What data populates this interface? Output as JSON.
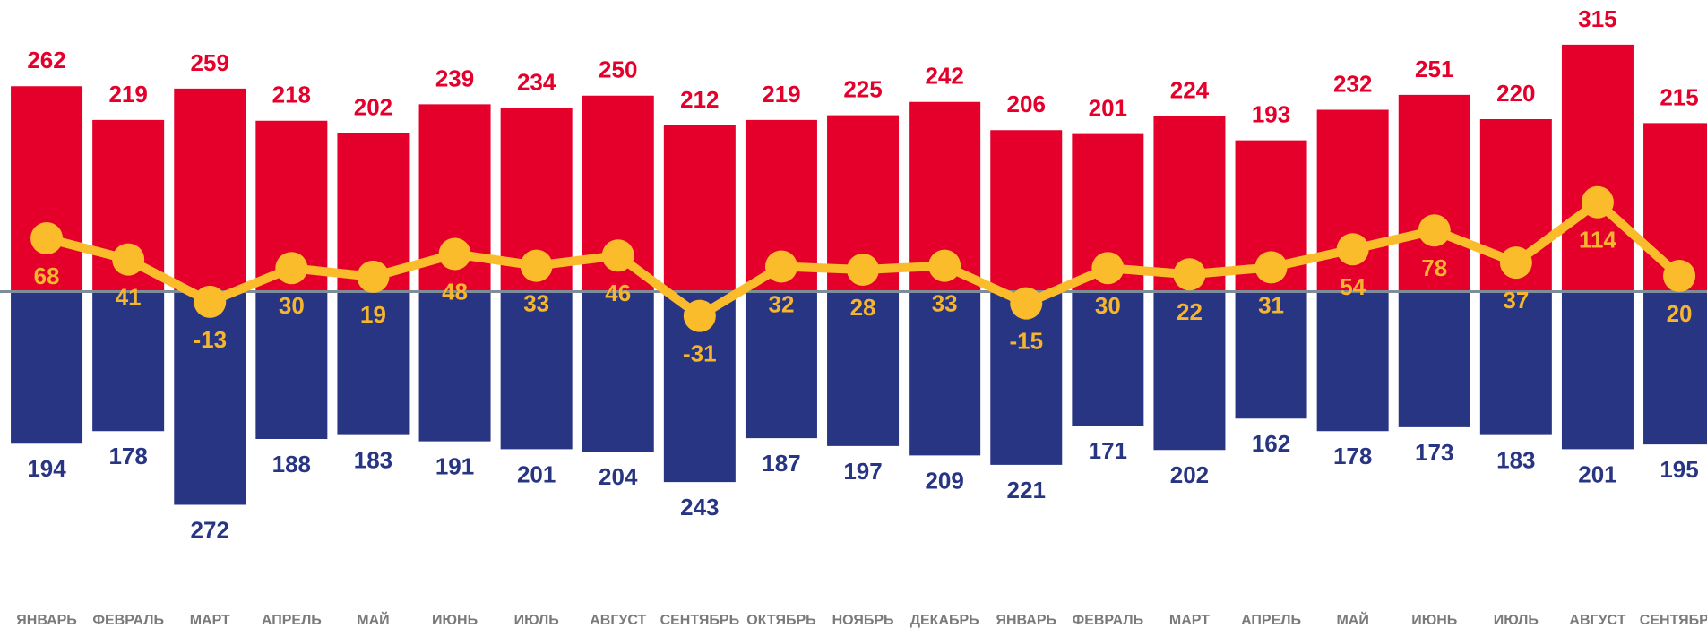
{
  "chart_data": {
    "type": "bar",
    "categories": [
      "ЯНВАРЬ",
      "ФЕВРАЛЬ",
      "МАРТ",
      "АПРЕЛЬ",
      "МАЙ",
      "ИЮНЬ",
      "ИЮЛЬ",
      "АВГУСТ",
      "СЕНТЯБРЬ",
      "ОКТЯБРЬ",
      "НОЯБРЬ",
      "ДЕКАБРЬ",
      "ЯНВАРЬ",
      "ФЕВРАЛЬ",
      "МАРТ",
      "АПРЕЛЬ",
      "МАЙ",
      "ИЮНЬ",
      "ИЮЛЬ",
      "АВГУСТ",
      "СЕНТЯБРЬ"
    ],
    "series": [
      {
        "color": "#e4002b",
        "values": [
          262,
          219,
          259,
          218,
          202,
          239,
          234,
          250,
          212,
          219,
          225,
          242,
          206,
          201,
          224,
          193,
          232,
          251,
          220,
          315,
          215
        ]
      },
      {
        "color": "#283583",
        "values": [
          194,
          178,
          272,
          188,
          183,
          191,
          201,
          204,
          243,
          187,
          197,
          209,
          221,
          171,
          202,
          162,
          178,
          173,
          183,
          201,
          195
        ]
      },
      {
        "type": "line",
        "color": "#fbbc2c",
        "values": [
          68,
          41,
          -13,
          30,
          19,
          48,
          33,
          46,
          -31,
          32,
          28,
          33,
          -15,
          30,
          22,
          31,
          54,
          78,
          37,
          114,
          20
        ]
      }
    ],
    "ylim": [
      -380,
      372
    ]
  }
}
